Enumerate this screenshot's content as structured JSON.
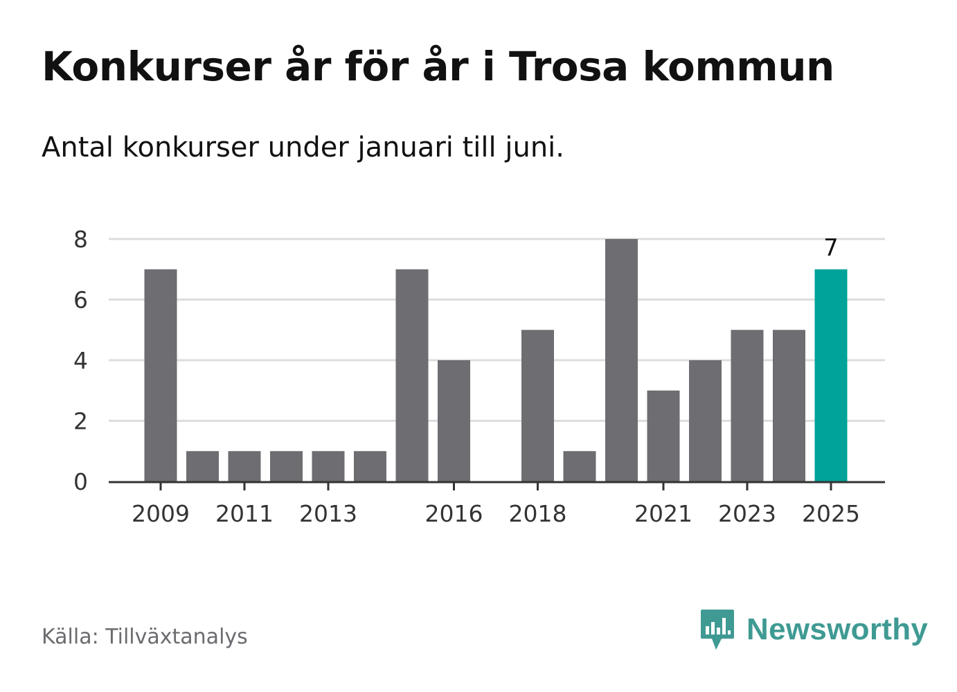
{
  "title": "Konkurser år för år i Trosa kommun",
  "subtitle": "Antal konkurser under januari till juni.",
  "source": "Källa: Tillväxtanalys",
  "brand": {
    "name": "Newsworthy",
    "icon": "newsworthy-logo-icon",
    "color": "#3f9a93"
  },
  "colors": {
    "bar": "#6e6d72",
    "highlight": "#00a39a",
    "grid": "#dddddd",
    "axis": "#333333"
  },
  "chart_data": {
    "type": "bar",
    "categories": [
      "2009",
      "2010",
      "2011",
      "2012",
      "2013",
      "2014",
      "2015",
      "2016",
      "2017",
      "2018",
      "2019",
      "2020",
      "2021",
      "2022",
      "2023",
      "2024",
      "2025"
    ],
    "values": [
      7,
      1,
      1,
      1,
      1,
      1,
      7,
      4,
      0,
      5,
      1,
      8,
      3,
      4,
      5,
      5,
      7
    ],
    "x_tick_labels": [
      "2009",
      "2011",
      "2013",
      "2016",
      "2018",
      "2021",
      "2023",
      "2025"
    ],
    "y_ticks": [
      0,
      2,
      4,
      6,
      8
    ],
    "ylim": [
      0,
      8
    ],
    "grid": true,
    "highlight_category": "2025",
    "highlight_label": "7"
  }
}
